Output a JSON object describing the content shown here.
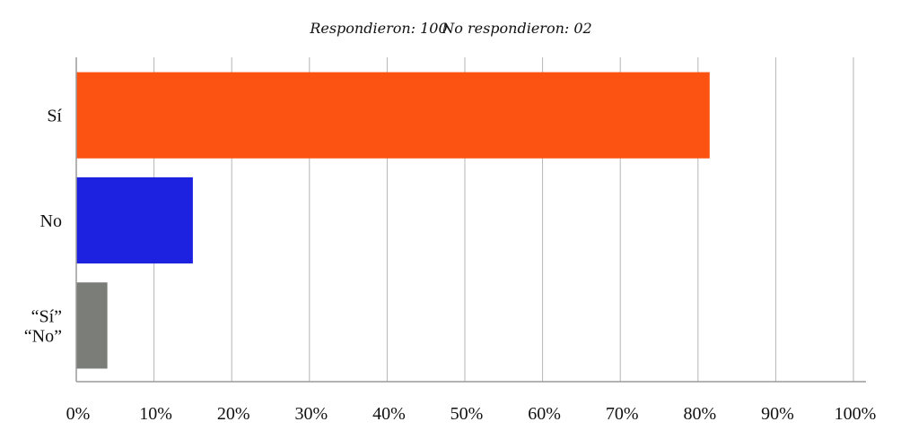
{
  "subtitle": {
    "respondieron": "Respondieron: 100",
    "no_respondieron": "No respondieron: 02"
  },
  "chart_data": {
    "type": "bar",
    "orientation": "horizontal",
    "categories": [
      {
        "lines": [
          "Sí"
        ]
      },
      {
        "lines": [
          "No"
        ]
      },
      {
        "lines": [
          "“Sí”",
          "“No”"
        ]
      }
    ],
    "values": [
      81.5,
      15,
      4
    ],
    "colors": [
      "#fc5312",
      "#1c22e0",
      "#7b7d78"
    ],
    "xlim": [
      0,
      100
    ],
    "x_ticks": [
      "0%",
      "10%",
      "20%",
      "30%",
      "40%",
      "50%",
      "60%",
      "70%",
      "80%",
      "90%",
      "100%"
    ],
    "grid": true,
    "legend": "none"
  }
}
